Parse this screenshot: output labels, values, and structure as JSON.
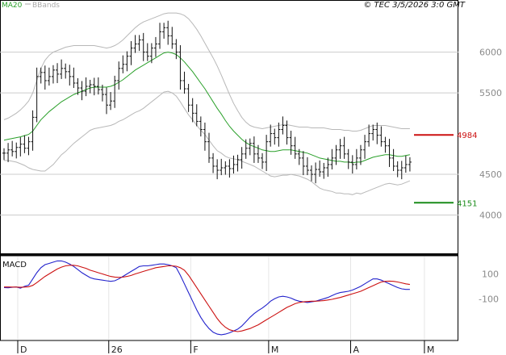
{
  "header": {
    "legend_ma": "MA20",
    "legend_bb": "BBands",
    "copyright": "© TEC 3/5/2026 3:0 GMT"
  },
  "colors": {
    "ma": "#2aa02a",
    "bbands": "#b8b8b8",
    "price": "#111111",
    "resistance": "#cc1111",
    "support": "#1a8c1a",
    "macd": "#2222cc",
    "signal": "#cc1111",
    "grid": "#cccccc"
  },
  "chart_data": [
    {
      "type": "ohlc",
      "name": "price-panel",
      "x_ticks": [
        {
          "label": "D",
          "index": 0
        },
        {
          "label": "26",
          "index": 22
        },
        {
          "label": "F",
          "index": 42
        },
        {
          "label": "M",
          "index": 61
        },
        {
          "label": "A",
          "index": 81
        },
        {
          "label": "M",
          "index": 99
        }
      ],
      "y_ticks": [
        {
          "label": "6000",
          "value": 6000
        },
        {
          "label": "5500",
          "value": 5500
        },
        {
          "label": "4500",
          "value": 4500
        },
        {
          "label": "4000",
          "value": 4000
        }
      ],
      "ylim": [
        3530,
        6620
      ],
      "closes": [
        4760,
        4800,
        4780,
        4830,
        4870,
        4820,
        4900,
        5200,
        5700,
        5750,
        5650,
        5700,
        5780,
        5730,
        5800,
        5760,
        5700,
        5620,
        5560,
        5520,
        5580,
        5600,
        5580,
        5540,
        5480,
        5350,
        5400,
        5650,
        5800,
        5850,
        5950,
        6050,
        6100,
        6150,
        6000,
        5950,
        6050,
        6100,
        6250,
        6300,
        6200,
        6100,
        6000,
        5650,
        5550,
        5350,
        5250,
        5150,
        5050,
        4900,
        4700,
        4600,
        4550,
        4580,
        4600,
        4570,
        4620,
        4680,
        4750,
        4820,
        4880,
        4750,
        4700,
        4650,
        4900,
        5000,
        4950,
        5050,
        5100,
        4950,
        4850,
        4750,
        4700,
        4600,
        4550,
        4500,
        4560,
        4530,
        4580,
        4620,
        4700,
        4800,
        4850,
        4750,
        4650,
        4620,
        4700,
        4800,
        4900,
        5000,
        5050,
        4980,
        4900,
        4850,
        4700,
        4600,
        4550,
        4580,
        4620,
        4650
      ],
      "ma20": [
        4920,
        4930,
        4940,
        4950,
        4960,
        4975,
        4990,
        5030,
        5100,
        5170,
        5220,
        5270,
        5310,
        5350,
        5390,
        5420,
        5450,
        5480,
        5500,
        5520,
        5540,
        5560,
        5570,
        5570,
        5570,
        5570,
        5580,
        5600,
        5630,
        5660,
        5700,
        5740,
        5780,
        5810,
        5840,
        5870,
        5900,
        5930,
        5960,
        5990,
        6000,
        5990,
        5970,
        5930,
        5880,
        5820,
        5760,
        5690,
        5620,
        5550,
        5470,
        5390,
        5310,
        5240,
        5160,
        5090,
        5030,
        4980,
        4930,
        4890,
        4860,
        4840,
        4820,
        4800,
        4790,
        4780,
        4780,
        4790,
        4800,
        4800,
        4800,
        4790,
        4780,
        4770,
        4760,
        4740,
        4720,
        4700,
        4690,
        4680,
        4670,
        4660,
        4660,
        4650,
        4650,
        4640,
        4650,
        4650,
        4670,
        4690,
        4710,
        4720,
        4730,
        4740,
        4740,
        4730,
        4720,
        4720,
        4730,
        4740
      ],
      "bb_upper": [
        5170,
        5190,
        5220,
        5250,
        5290,
        5340,
        5400,
        5500,
        5650,
        5800,
        5900,
        5960,
        6000,
        6020,
        6040,
        6060,
        6070,
        6080,
        6080,
        6080,
        6080,
        6080,
        6080,
        6070,
        6060,
        6050,
        6060,
        6080,
        6110,
        6150,
        6200,
        6250,
        6300,
        6340,
        6370,
        6390,
        6410,
        6430,
        6450,
        6470,
        6480,
        6480,
        6480,
        6470,
        6450,
        6410,
        6350,
        6280,
        6200,
        6110,
        6020,
        5930,
        5830,
        5720,
        5600,
        5480,
        5370,
        5280,
        5200,
        5140,
        5100,
        5080,
        5070,
        5060,
        5070,
        5080,
        5090,
        5100,
        5110,
        5110,
        5100,
        5090,
        5080,
        5080,
        5080,
        5070,
        5070,
        5070,
        5070,
        5060,
        5050,
        5050,
        5050,
        5040,
        5040,
        5030,
        5030,
        5040,
        5060,
        5080,
        5100,
        5100,
        5100,
        5100,
        5090,
        5080,
        5070,
        5060,
        5060,
        5060
      ],
      "bb_lower": [
        4670,
        4670,
        4660,
        4650,
        4630,
        4610,
        4580,
        4560,
        4550,
        4540,
        4540,
        4580,
        4620,
        4680,
        4740,
        4780,
        4830,
        4880,
        4920,
        4960,
        5000,
        5040,
        5060,
        5070,
        5080,
        5090,
        5100,
        5120,
        5150,
        5170,
        5200,
        5230,
        5260,
        5280,
        5310,
        5350,
        5390,
        5430,
        5470,
        5510,
        5520,
        5500,
        5460,
        5390,
        5310,
        5230,
        5170,
        5100,
        5040,
        4990,
        4920,
        4850,
        4790,
        4760,
        4720,
        4700,
        4690,
        4680,
        4660,
        4640,
        4620,
        4600,
        4570,
        4540,
        4510,
        4480,
        4470,
        4480,
        4490,
        4490,
        4500,
        4490,
        4480,
        4460,
        4440,
        4410,
        4370,
        4330,
        4310,
        4300,
        4290,
        4270,
        4270,
        4260,
        4260,
        4250,
        4270,
        4260,
        4280,
        4300,
        4320,
        4340,
        4360,
        4380,
        4390,
        4380,
        4370,
        4380,
        4400,
        4420
      ],
      "levels": [
        {
          "name": "resistance",
          "label": "4984",
          "value": 4984
        },
        {
          "name": "support",
          "label": "4151",
          "value": 4151
        }
      ]
    },
    {
      "type": "line",
      "name": "macd-panel",
      "title": "MACD",
      "y_ticks": [
        {
          "label": "100",
          "value": 100
        },
        {
          "label": "-100",
          "value": -100
        }
      ],
      "ylim": [
        -430,
        240
      ],
      "series": [
        {
          "key": "macd",
          "values": [
            -10,
            -12,
            -8,
            -5,
            -15,
            0,
            10,
            60,
            110,
            150,
            175,
            185,
            195,
            205,
            205,
            195,
            180,
            160,
            135,
            110,
            90,
            70,
            60,
            55,
            50,
            45,
            40,
            45,
            60,
            80,
            100,
            120,
            140,
            160,
            165,
            165,
            170,
            175,
            180,
            180,
            175,
            165,
            150,
            90,
            20,
            -50,
            -120,
            -190,
            -250,
            -300,
            -340,
            -370,
            -385,
            -390,
            -385,
            -375,
            -360,
            -345,
            -320,
            -285,
            -250,
            -220,
            -195,
            -175,
            -150,
            -120,
            -100,
            -85,
            -80,
            -85,
            -95,
            -110,
            -120,
            -125,
            -130,
            -125,
            -120,
            -110,
            -100,
            -90,
            -75,
            -60,
            -50,
            -45,
            -40,
            -30,
            -15,
            0,
            20,
            40,
            60,
            60,
            50,
            35,
            20,
            5,
            -10,
            -20,
            -25,
            -25
          ]
        },
        {
          "key": "signal",
          "values": [
            -5,
            -5,
            -6,
            -6,
            -8,
            -6,
            -3,
            8,
            30,
            55,
            80,
            100,
            120,
            140,
            155,
            165,
            170,
            170,
            165,
            155,
            145,
            130,
            120,
            110,
            100,
            90,
            80,
            75,
            72,
            74,
            80,
            88,
            100,
            110,
            120,
            130,
            140,
            150,
            155,
            160,
            165,
            165,
            162,
            150,
            130,
            90,
            40,
            -10,
            -60,
            -110,
            -160,
            -210,
            -260,
            -300,
            -330,
            -350,
            -360,
            -365,
            -360,
            -350,
            -340,
            -325,
            -310,
            -290,
            -270,
            -250,
            -230,
            -210,
            -190,
            -170,
            -155,
            -140,
            -130,
            -125,
            -122,
            -120,
            -120,
            -118,
            -115,
            -110,
            -105,
            -97,
            -90,
            -80,
            -70,
            -60,
            -50,
            -40,
            -25,
            -10,
            5,
            20,
            35,
            40,
            42,
            40,
            35,
            28,
            20,
            15
          ]
        }
      ]
    }
  ]
}
